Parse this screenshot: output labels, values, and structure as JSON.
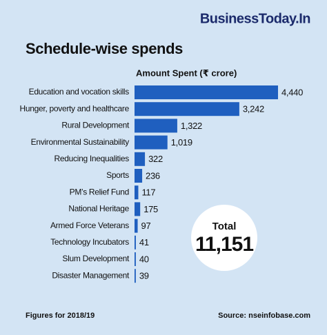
{
  "brand": "BusinessToday.In",
  "chart_data": {
    "type": "bar",
    "orientation": "horizontal",
    "title": "Schedule-wise spends",
    "axis_label": "Amount Spent (₹ crore)",
    "categories": [
      "Education and vocation skills",
      "Hunger, poverty and healthcare",
      "Rural Development",
      "Environmental Sustainability",
      "Reducing Inequalities",
      "Sports",
      "PM’s Relief Fund",
      "National Heritage",
      "Armed Force Veterans",
      "Technology Incubators",
      "Slum Development",
      "Disaster Management"
    ],
    "values": [
      4440,
      3242,
      1322,
      1019,
      322,
      236,
      117,
      175,
      97,
      41,
      40,
      39
    ],
    "value_labels": [
      "4,440",
      "3,242",
      "1,322",
      "1,019",
      "322",
      "236",
      "117",
      "175",
      "97",
      "41",
      "40",
      "39"
    ],
    "color": "#1f5fbf"
  },
  "total": {
    "label": "Total",
    "value": "11,151"
  },
  "footnote": "Figures for 2018/19",
  "source": "Source: nseinfobase.com"
}
